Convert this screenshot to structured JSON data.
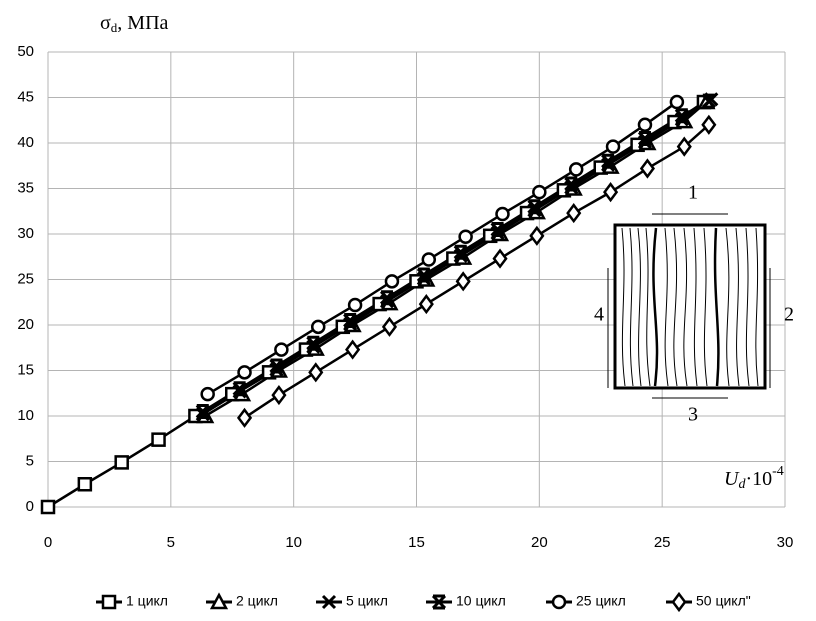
{
  "chart_data": {
    "type": "line",
    "y_label": {
      "base": "σ",
      "sub": "d",
      "rest": ", МПа"
    },
    "x_label": {
      "base": "U",
      "sub": "d",
      "rest": "·10",
      "sup": "-4"
    },
    "xlim": [
      0,
      30
    ],
    "xticks": [
      0,
      5,
      10,
      15,
      20,
      25,
      30
    ],
    "ylim": [
      0,
      50
    ],
    "yticks": [
      0,
      5,
      10,
      15,
      20,
      25,
      30,
      35,
      40,
      45,
      50
    ],
    "grid": true,
    "legend": "bottom",
    "annotations": [
      "1",
      "2",
      "3",
      "4"
    ],
    "series": [
      {
        "name": "1 цикл",
        "marker": "square",
        "color": "#000000",
        "x": [
          0,
          1.5,
          3,
          4.5,
          6,
          7.5,
          9,
          10.5,
          12,
          13.5,
          15,
          16.5,
          18,
          19.5,
          21,
          22.5,
          24,
          25.5,
          26.7
        ],
        "values": [
          0,
          2.5,
          4.9,
          7.4,
          10,
          12.4,
          14.8,
          17.3,
          19.8,
          22.3,
          24.8,
          27.3,
          29.8,
          32.3,
          34.8,
          37.3,
          39.8,
          42.3,
          44.5
        ]
      },
      {
        "name": "2 цикл",
        "marker": "triangle",
        "color": "#000000",
        "x": [
          6.4,
          7.9,
          9.4,
          10.9,
          12.4,
          13.9,
          15.4,
          16.9,
          18.4,
          19.9,
          21.4,
          22.9,
          24.4,
          25.9,
          26.8
        ],
        "values": [
          10,
          12.4,
          15,
          17.4,
          20,
          22.4,
          25,
          27.4,
          30,
          32.4,
          35,
          37.4,
          40,
          42.4,
          44.5
        ]
      },
      {
        "name": "5 цикл",
        "marker": "x",
        "color": "#000000",
        "x": [
          6.3,
          7.8,
          9.3,
          10.8,
          12.3,
          13.8,
          15.3,
          16.8,
          18.3,
          19.8,
          21.3,
          22.8,
          24.3,
          25.8,
          27
        ],
        "values": [
          10.2,
          12.7,
          15.1,
          17.6,
          20.1,
          22.6,
          25.1,
          27.6,
          30.1,
          32.6,
          35.1,
          37.6,
          40.1,
          42.6,
          44.8
        ]
      },
      {
        "name": "10 цикл",
        "marker": "xbar",
        "color": "#000000",
        "x": [
          6.3,
          7.8,
          9.3,
          10.8,
          12.3,
          13.8,
          15.3,
          16.8,
          18.3,
          19.8,
          21.3,
          22.8,
          24.3,
          25.8,
          26.9
        ],
        "values": [
          10.5,
          13,
          15.5,
          18,
          20.5,
          23,
          25.5,
          28,
          30.5,
          33,
          35.5,
          38,
          40.5,
          43,
          44.6
        ]
      },
      {
        "name": "25 цикл",
        "marker": "circle",
        "color": "#000000",
        "x": [
          6.5,
          8,
          9.5,
          11,
          12.5,
          14,
          15.5,
          17,
          18.5,
          20,
          21.5,
          23,
          24.3,
          25.6
        ],
        "values": [
          12.4,
          14.8,
          17.3,
          19.8,
          22.2,
          24.8,
          27.2,
          29.7,
          32.2,
          34.6,
          37.1,
          39.6,
          42,
          44.5
        ]
      },
      {
        "name": "50 цикл\"",
        "marker": "diamond",
        "color": "#000000",
        "x": [
          8,
          9.4,
          10.9,
          12.4,
          13.9,
          15.4,
          16.9,
          18.4,
          19.9,
          21.4,
          22.9,
          24.4,
          25.9,
          26.9
        ],
        "values": [
          9.8,
          12.3,
          14.8,
          17.3,
          19.8,
          22.3,
          24.8,
          27.3,
          29.8,
          32.3,
          34.6,
          37.2,
          39.6,
          42
        ]
      }
    ]
  }
}
